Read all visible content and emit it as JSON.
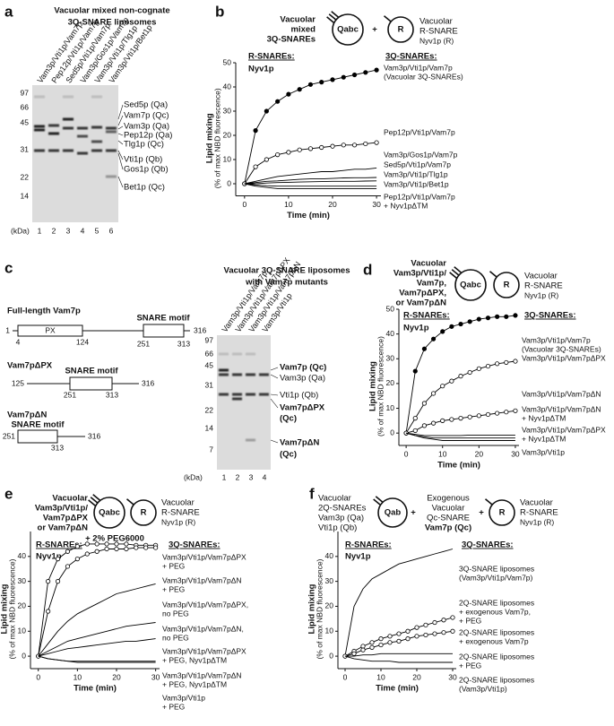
{
  "panels": {
    "a": {
      "texts": [
        "a",
        "Vacuolar mixed non-cognate",
        "3Q-SNARE liposomes",
        "Vam3p/Vti1p/Vam7p",
        "Pep12p/Vti1p/Vam7p",
        "Sed5p/Vti1p/Vam7p",
        "Vam3p/Gos1p/Vam7p",
        "Vam3p/Vti1p/Tlg1p",
        "Vam3p/Vti1p/Bet1p",
        "97",
        "66",
        "45",
        "31",
        "22",
        "14",
        "(kDa)",
        "1",
        "2",
        "3",
        "4",
        "5",
        "6",
        "Sed5p (Qa)",
        "Vam7p (Qc)",
        "Vam3p (Qa)",
        "Pep12p (Qa)",
        "Tlg1p (Qc)",
        "Vti1p (Qb)",
        "Gos1p (Qb)",
        "Bet1p (Qc)"
      ]
    },
    "b": {
      "texts": [
        "b",
        "Vacuolar",
        "mixed",
        "3Q-SNAREs",
        "Qabc",
        "R",
        "Vacuolar",
        "R-SNARE",
        "Nyv1p (R)",
        "R-SNAREs:",
        "3Q-SNAREs:",
        "Nyv1p",
        "+"
      ]
    },
    "c": {
      "texts": [
        "c",
        "Full-length Vam7p",
        "SNARE motif",
        "PX",
        "1",
        "4",
        "124",
        "251",
        "313",
        "316",
        "Vam7pΔPX",
        "125",
        "SNARE motif",
        "251",
        "313",
        "316",
        "Vam7pΔN",
        "SNARE motif",
        "251",
        "313",
        "316",
        "Vacuolar 3Q-SNARE liposomes",
        "with Vam7p mutants",
        "Vam3p/Vti1p/Vam7p",
        "Vam3p/Vti1p/Vam7pΔPX",
        "Vam3p/Vti1p/Vam7pΔN",
        "Vam3p/Vti1p",
        "97",
        "66",
        "45",
        "31",
        "22",
        "14",
        "7",
        "(kDa)",
        "1",
        "2",
        "3",
        "4",
        "Vam7p (Qc)",
        "Vam3p (Qa)",
        "Vti1p (Qb)",
        "Vam7pΔPX",
        "(Qc)",
        "Vam7pΔN",
        "(Qc)"
      ]
    },
    "d": {
      "texts": [
        "d",
        "Vacuolar",
        "Vam3p/Vti1p/",
        "Vam7p,",
        "Vam7pΔPX,",
        "or Vam7pΔN",
        "Qabc",
        "R",
        "Vacuolar",
        "R-SNARE",
        "Nyv1p (R)",
        "R-SNAREs:",
        "3Q-SNAREs:",
        "Nyv1p"
      ]
    },
    "e": {
      "texts": [
        "e",
        "Vacuolar",
        "Vam3p/Vti1p/",
        "Vam7pΔPX",
        "or Vam7pΔN",
        "Qabc",
        "R",
        "Vacuolar",
        "R-SNARE",
        "Nyv1p (R)",
        "+ 2% PEG6000",
        "R-SNAREs:",
        "3Q-SNAREs:",
        "Nyv1p"
      ]
    },
    "f": {
      "texts": [
        "f",
        "Vacuolar",
        "2Q-SNAREs",
        "Vam3p (Qa)",
        "Vti1p (Qb)",
        "Qab",
        "+",
        "Exogenous",
        "Vacuolar",
        "Qc-SNARE",
        "Vam7p (Qc)",
        "+",
        "R",
        "Vacuolar",
        "R-SNARE",
        "Nyv1p (R)",
        "R-SNAREs:",
        "3Q-SNAREs:",
        "Nyv1p"
      ]
    }
  },
  "chart_data": [
    {
      "type": "line",
      "xlabel": "Time (min)",
      "ylabel": [
        "Lipid mixing",
        "(% of max NBD fluorescence)"
      ],
      "x": [
        0,
        2.5,
        5,
        7.5,
        10,
        12.5,
        15,
        17.5,
        20,
        22.5,
        25,
        27.5,
        30
      ],
      "xlim": [
        -2,
        31
      ],
      "xticks": [
        0,
        10,
        20,
        30
      ],
      "ylim": [
        -5,
        50
      ],
      "yticks": [
        0,
        10,
        20,
        30,
        40,
        50
      ],
      "series": [
        {
          "name": [
            "Vam3p/Vti1p/Vam7p",
            "(Vacuolar 3Q-SNAREs)"
          ],
          "color": "#000000",
          "marker": "filled",
          "values": [
            0,
            22,
            30,
            34,
            37,
            39,
            41,
            42,
            43,
            44,
            45,
            46,
            47
          ]
        },
        {
          "name": [
            "Pep12p/Vti1p/Vam7p"
          ],
          "color": "#000000",
          "marker": "open",
          "values": [
            0,
            7,
            10,
            12,
            13,
            14,
            14.5,
            15,
            15.5,
            16,
            16,
            16.5,
            17
          ]
        },
        {
          "name": [
            "Vam3p/Gos1p/Vam7p"
          ],
          "color": "#000000",
          "marker": "none",
          "values": [
            0,
            1,
            2,
            3,
            3.5,
            4,
            4.5,
            5,
            5,
            5.5,
            6,
            6,
            6.5
          ]
        },
        {
          "name": [
            "Sed5p/Vti1p/Vam7p"
          ],
          "color": "#000000",
          "marker": "none",
          "values": [
            0,
            0.5,
            1,
            1.2,
            1.5,
            1.8,
            2,
            2,
            2.2,
            2.4,
            2.5,
            2.5,
            2.6
          ]
        },
        {
          "name": [
            "Vam3p/Vti1p/Tlg1p"
          ],
          "color": "#000000",
          "marker": "none",
          "values": [
            0,
            0,
            0.3,
            0.5,
            0.6,
            0.7,
            0.8,
            0.9,
            1,
            1,
            1,
            1.1,
            1.2
          ]
        },
        {
          "name": [
            "Vam3p/Vti1p/Bet1p"
          ],
          "color": "#000000",
          "marker": "none",
          "values": [
            0,
            -0.5,
            -0.8,
            -1,
            -1,
            -1,
            -1,
            -1,
            -1,
            -1,
            -1,
            -1,
            -1
          ]
        },
        {
          "name": [
            "Pep12p/Vti1p/Vam7p",
            "+ Nyv1pΔTM"
          ],
          "color": "#000000",
          "marker": "none",
          "values": [
            0,
            -1,
            -1.5,
            -2,
            -2,
            -2,
            -2,
            -2,
            -2,
            -2,
            -2,
            -2,
            -2
          ]
        }
      ]
    },
    {
      "type": "line",
      "xlabel": "Time (min)",
      "ylabel": [
        "Lipid mixing",
        "(% of max NBD fluorescence)"
      ],
      "x": [
        0,
        2.5,
        5,
        7.5,
        10,
        12.5,
        15,
        17.5,
        20,
        22.5,
        25,
        27.5,
        30
      ],
      "xlim": [
        -2,
        31
      ],
      "xticks": [
        0,
        10,
        20,
        30
      ],
      "ylim": [
        -5,
        50
      ],
      "yticks": [
        0,
        10,
        20,
        30,
        40,
        50
      ],
      "series": [
        {
          "name": [
            "Vam3p/Vti1p/Vam7p",
            "(Vacuolar 3Q-SNAREs)"
          ],
          "color": "#000000",
          "marker": "filled",
          "values": [
            0,
            25,
            34,
            38,
            41,
            43,
            44,
            45,
            46,
            46.5,
            47,
            47,
            47.5
          ]
        },
        {
          "name": [
            "Vam3p/Vti1p/Vam7pΔPX"
          ],
          "color": "#000000",
          "marker": "open",
          "values": [
            0,
            6,
            12,
            16,
            19,
            21,
            23,
            24.5,
            26,
            27,
            28,
            28.5,
            29
          ]
        },
        {
          "name": [
            "Vam3p/Vti1p/Vam7pΔN"
          ],
          "color": "#000000",
          "marker": "open",
          "values": [
            0,
            1,
            3,
            4,
            5,
            5.5,
            6,
            6.5,
            7,
            7.5,
            8,
            8.5,
            9
          ]
        },
        {
          "name": [
            "Vam3p/Vti1p/Vam7pΔN",
            "+ Nyv1pΔTM"
          ],
          "color": "#000000",
          "marker": "none",
          "values": [
            0,
            -0.5,
            -1,
            -1,
            -1,
            -1,
            -1,
            -0.8,
            -0.8,
            -0.8,
            -0.8,
            -0.8,
            -0.8
          ]
        },
        {
          "name": [
            "Vam3p/Vti1p/Vam7pΔPX",
            "+ Nyv1pΔTM"
          ],
          "color": "#000000",
          "marker": "none",
          "values": [
            0,
            -1,
            -1.5,
            -2,
            -2,
            -2,
            -2,
            -2,
            -2,
            -2,
            -2,
            -2,
            -2
          ]
        },
        {
          "name": [
            "Vam3p/Vti1p"
          ],
          "color": "#000000",
          "marker": "none",
          "values": [
            0,
            -1,
            -2,
            -2.5,
            -3,
            -3,
            -3,
            -3,
            -3,
            -3,
            -3,
            -3,
            -3
          ]
        }
      ]
    },
    {
      "type": "line",
      "xlabel": "Time (min)",
      "ylabel": [
        "Lipid mixing",
        "(% of max NBD fluorescence)"
      ],
      "x": [
        0,
        2.5,
        5,
        7.5,
        10,
        12.5,
        15,
        17.5,
        20,
        22.5,
        25,
        27.5,
        30
      ],
      "xlim": [
        -2,
        31
      ],
      "xticks": [
        0,
        10,
        20,
        30
      ],
      "ylim": [
        -5,
        50
      ],
      "yticks": [
        0,
        10,
        20,
        30,
        40
      ],
      "series": [
        {
          "name": [
            "Vam3p/Vti1p/Vam7pΔPX",
            "+ PEG"
          ],
          "color": "#000000",
          "marker": "open",
          "values": [
            0,
            30,
            39,
            42,
            44,
            45,
            45,
            45,
            45,
            45,
            44.5,
            44.5,
            44.5
          ]
        },
        {
          "name": [
            "Vam3p/Vti1p/Vam7pΔN",
            "+ PEG"
          ],
          "color": "#000000",
          "marker": "open",
          "values": [
            0,
            18,
            30,
            36,
            39,
            41,
            42,
            43,
            43,
            43,
            43.5,
            43.5,
            43.5
          ]
        },
        {
          "name": [
            "Vam3p/Vti1p/Vam7pΔPX,",
            "no PEG"
          ],
          "color": "#000000",
          "marker": "none",
          "values": [
            0,
            5,
            10,
            14,
            17,
            19,
            21,
            23,
            25,
            26,
            27,
            28,
            29
          ]
        },
        {
          "name": [
            "Vam3p/Vti1p/Vam7pΔN,",
            "no PEG"
          ],
          "color": "#000000",
          "marker": "none",
          "values": [
            0,
            2,
            4,
            6,
            7,
            8,
            9,
            10,
            11,
            12,
            12.5,
            13,
            13.5
          ]
        },
        {
          "name": [
            "Vam3p/Vti1p/Vam7pΔPX",
            "+ PEG, Nyv1pΔTM"
          ],
          "color": "#000000",
          "marker": "none",
          "values": [
            0,
            1,
            2,
            3,
            3.5,
            4,
            4.5,
            5,
            5.5,
            6,
            6,
            6.5,
            7
          ]
        },
        {
          "name": [
            "Vam3p/Vti1p/Vam7pΔN",
            "+ PEG, Nyv1pΔTM"
          ],
          "color": "#000000",
          "marker": "none",
          "values": [
            0,
            -1,
            -1.5,
            -2,
            -2,
            -2,
            -2,
            -2,
            -2,
            -2,
            -2,
            -2,
            -2
          ]
        },
        {
          "name": [
            "Vam3p/Vti1p",
            "+ PEG"
          ],
          "color": "#000000",
          "marker": "none",
          "values": [
            0,
            -1,
            -1.5,
            -2,
            -2.5,
            -2.5,
            -2.5,
            -2.5,
            -2.5,
            -2.5,
            -2.5,
            -2.5,
            -2.5
          ]
        }
      ]
    },
    {
      "type": "line",
      "xlabel": "Time (min)",
      "ylabel": [
        "Lipid mixing",
        "(% of max NBD fluorescence)"
      ],
      "x": [
        0,
        2.5,
        5,
        7.5,
        10,
        12.5,
        15,
        17.5,
        20,
        22.5,
        25,
        27.5,
        30
      ],
      "xlim": [
        -2,
        31
      ],
      "xticks": [
        0,
        10,
        20,
        30
      ],
      "ylim": [
        -5,
        50
      ],
      "yticks": [
        0,
        10,
        20,
        30,
        40
      ],
      "series": [
        {
          "name": [
            "3Q-SNARE liposomes",
            "(Vam3p/Vti1p/Vam7p)"
          ],
          "color": "#000000",
          "marker": "none",
          "values": [
            0,
            20,
            27,
            31,
            33,
            35,
            37,
            38,
            39,
            40,
            41,
            42,
            43
          ]
        },
        {
          "name": [
            "2Q-SNARE liposomes",
            "+ exogenous Vam7p,",
            "+ PEG"
          ],
          "color": "#000000",
          "marker": "open",
          "values": [
            0,
            2,
            4,
            5.5,
            7,
            8,
            9,
            10,
            11.5,
            12.5,
            13.5,
            14.5,
            15.5
          ]
        },
        {
          "name": [
            "2Q-SNARE liposomes",
            "+ exogenous Vam7p"
          ],
          "color": "#000000",
          "marker": "open",
          "values": [
            0,
            1,
            2.5,
            3.5,
            4.5,
            5.5,
            6,
            7,
            8,
            8.5,
            9,
            9.5,
            10
          ]
        },
        {
          "name": [
            "2Q-SNARE liposomes",
            "+ PEG"
          ],
          "color": "#000000",
          "marker": "none",
          "values": [
            0,
            0,
            0.5,
            0.5,
            1,
            1,
            1,
            1,
            1,
            1,
            1,
            1,
            1
          ]
        },
        {
          "name": [
            "2Q-SNARE liposomes",
            "(Vam3p/Vti1p)"
          ],
          "color": "#000000",
          "marker": "none",
          "values": [
            0,
            -1,
            -1.5,
            -2,
            -2,
            -2,
            -2.5,
            -2.5,
            -2.5,
            -2.5,
            -2.5,
            -2.5,
            -2.5
          ]
        }
      ]
    }
  ]
}
